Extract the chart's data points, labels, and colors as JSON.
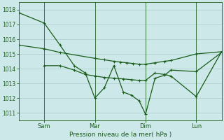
{
  "background_color": "#cce8e8",
  "grid_color": "#aacccc",
  "line_color": "#1a5c1a",
  "title": "Pression niveau de la mer( hPa )",
  "ylim": [
    1010.5,
    1018.5
  ],
  "yticks": [
    1011,
    1012,
    1013,
    1014,
    1015,
    1016,
    1017,
    1018
  ],
  "xtick_labels": [
    "Sam",
    "Mar",
    "Dim",
    "Lun"
  ],
  "xtick_positions": [
    16,
    48,
    80,
    112
  ],
  "vline_positions": [
    16,
    48,
    80,
    112
  ],
  "xmin": 0,
  "xmax": 128,
  "series1_x": [
    0,
    16,
    26,
    35,
    42,
    48,
    54,
    60,
    66,
    71,
    76,
    80,
    86,
    92,
    96,
    112,
    128
  ],
  "series1_y": [
    1017.8,
    1017.1,
    1015.6,
    1014.2,
    1013.7,
    1012.0,
    1012.7,
    1014.2,
    1012.4,
    1012.2,
    1011.8,
    1010.9,
    1013.35,
    1013.55,
    1013.9,
    1013.8,
    1015.1
  ],
  "series2_x": [
    0,
    16,
    26,
    48,
    54,
    60,
    64,
    68,
    72,
    76,
    80,
    86,
    92,
    96,
    112,
    128
  ],
  "series2_y": [
    1015.6,
    1015.35,
    1015.1,
    1014.7,
    1014.6,
    1014.5,
    1014.45,
    1014.4,
    1014.35,
    1014.3,
    1014.3,
    1014.4,
    1014.5,
    1014.55,
    1015.0,
    1015.15
  ],
  "series3_x": [
    16,
    26,
    35,
    42,
    48,
    54,
    60,
    66,
    71,
    76,
    80,
    86,
    92,
    96,
    112,
    128
  ],
  "series3_y": [
    1014.2,
    1014.2,
    1013.9,
    1013.6,
    1013.5,
    1013.4,
    1013.35,
    1013.3,
    1013.25,
    1013.2,
    1013.2,
    1013.7,
    1013.6,
    1013.5,
    1012.1,
    1015.15
  ]
}
